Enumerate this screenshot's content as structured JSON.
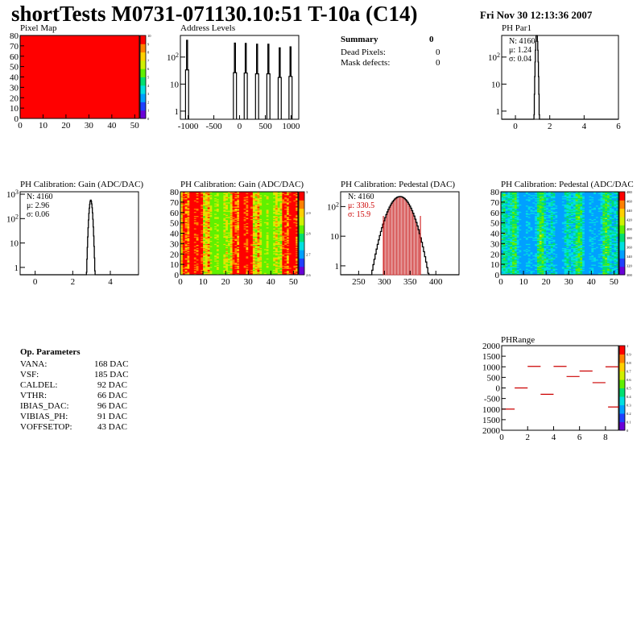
{
  "header": {
    "title": "shortTests M0731-071130.10:51 T-10a (C14)",
    "date": "Fri Nov 30 12:13:36 2007"
  },
  "summary": {
    "title": "Summary",
    "value": "0",
    "rows": [
      {
        "label": "Dead Pixels:",
        "value": "0"
      },
      {
        "label": "Mask defects:",
        "value": "0"
      }
    ]
  },
  "op_parameters": {
    "title": "Op. Parameters",
    "rows": [
      {
        "name": "VANA:",
        "value": "168 DAC"
      },
      {
        "name": "VSF:",
        "value": "185 DAC"
      },
      {
        "name": "CALDEL:",
        "value": "92 DAC"
      },
      {
        "name": "VTHR:",
        "value": "66 DAC"
      },
      {
        "name": "IBIAS_DAC:",
        "value": "96 DAC"
      },
      {
        "name": "VIBIAS_PH:",
        "value": "91 DAC"
      },
      {
        "name": "VOFFSETOP:",
        "value": "43 DAC"
      }
    ]
  },
  "colors": {
    "axis": "#000000",
    "fit": "#cc0000",
    "pixel_map_fill": "#ff0000",
    "palette": [
      "#6a00d8",
      "#2040ff",
      "#00a0ff",
      "#00e0e0",
      "#00e070",
      "#60f000",
      "#d0f000",
      "#ffd000",
      "#ff8000",
      "#ff0000"
    ]
  },
  "chart_data": [
    {
      "id": "pixel-map",
      "type": "heatmap",
      "title": "Pixel Map",
      "xlim": [
        0,
        52
      ],
      "ylim": [
        0,
        80
      ],
      "xticks": [
        "0",
        "10",
        "20",
        "30",
        "40",
        "50"
      ],
      "yticks": [
        "0",
        "10",
        "20",
        "30",
        "40",
        "50",
        "60",
        "70",
        "80"
      ],
      "uniform_value": 10,
      "zticks": [
        "0",
        "1",
        "2",
        "3",
        "4",
        "5",
        "6",
        "7",
        "8",
        "9",
        "10"
      ]
    },
    {
      "id": "address-levels",
      "type": "line",
      "title": "Address Levels",
      "log_y": true,
      "xlim": [
        -1150,
        1150
      ],
      "xticks": [
        "-1000",
        "-500",
        "0",
        "500",
        "1000"
      ],
      "yticks": [
        "1",
        "10",
        "10^2"
      ],
      "peaks": [
        {
          "center": -1020,
          "height": 420
        },
        {
          "center": -90,
          "height": 330
        },
        {
          "center": 120,
          "height": 320
        },
        {
          "center": 340,
          "height": 300
        },
        {
          "center": 560,
          "height": 300
        },
        {
          "center": 780,
          "height": 220
        },
        {
          "center": 990,
          "height": 240
        }
      ]
    },
    {
      "id": "ph-par1",
      "type": "bar",
      "title": "PH Par1",
      "log_y": true,
      "xlim": [
        -0.8,
        6
      ],
      "xticks": [
        "0",
        "2",
        "4",
        "6"
      ],
      "yticks": [
        "1",
        "10",
        "10^2"
      ],
      "stats": {
        "N": "N: 4160",
        "mu": "μ: 1.24",
        "sigma": "σ: 0.04"
      },
      "mean": 1.24,
      "sigma": 0.04,
      "entries": 4160
    },
    {
      "id": "ph-gain",
      "type": "bar",
      "title": "PH Calibration: Gain (ADC/DAC)",
      "log_y": true,
      "xlim": [
        -0.8,
        5.5
      ],
      "xticks": [
        "0",
        "2",
        "4"
      ],
      "yticks": [
        "1",
        "10",
        "10^2",
        "10^3"
      ],
      "stats": {
        "N": "N: 4160",
        "mu": "μ: 2.96",
        "sigma": "σ: 0.06"
      },
      "mean": 2.96,
      "sigma": 0.06,
      "entries": 4160
    },
    {
      "id": "ph-gain-map",
      "type": "heatmap",
      "title": "PH Calibration: Gain (ADC/DAC)",
      "xlim": [
        0,
        52
      ],
      "ylim": [
        0,
        80
      ],
      "xticks": [
        "0",
        "10",
        "20",
        "30",
        "40",
        "50"
      ],
      "yticks": [
        "0",
        "10",
        "20",
        "30",
        "40",
        "50",
        "60",
        "70",
        "80"
      ],
      "zticks": [
        "2.6",
        "2.7",
        "2.8",
        "2.9",
        "3"
      ]
    },
    {
      "id": "ph-pedestal",
      "type": "bar",
      "title": "PH Calibration: Pedestal (DAC)",
      "log_y": true,
      "xlim": [
        215,
        445
      ],
      "xticks": [
        "250",
        "300",
        "350",
        "400"
      ],
      "yticks": [
        "1",
        "10",
        "10^2"
      ],
      "stats": {
        "N": "N: 4160",
        "mu": "μ: 330.5",
        "sigma": "σ: 15.9"
      },
      "mean": 330.5,
      "sigma": 15.9,
      "entries": 4160,
      "cut_lines": [
        298,
        370
      ]
    },
    {
      "id": "ph-pedestal-map",
      "type": "heatmap",
      "title": "PH Calibration: Pedestal (ADC/DAC",
      "xlim": [
        0,
        52
      ],
      "ylim": [
        0,
        80
      ],
      "xticks": [
        "0",
        "10",
        "20",
        "30",
        "40",
        "50"
      ],
      "yticks": [
        "0",
        "10",
        "20",
        "30",
        "40",
        "50",
        "60",
        "70",
        "80"
      ],
      "zticks": [
        "300",
        "320",
        "340",
        "360",
        "380",
        "400",
        "420",
        "440",
        "460",
        "480"
      ]
    },
    {
      "id": "ph-range",
      "type": "scatter",
      "title": "PHRange",
      "xlim": [
        0,
        9
      ],
      "ylim": [
        -2000,
        2000
      ],
      "xticks": [
        "0",
        "2",
        "4",
        "6",
        "8"
      ],
      "yticks": [
        "2000",
        "1500",
        "1000",
        "500",
        "0",
        "-500",
        "1000",
        "1500",
        "2000"
      ],
      "zticks": [
        "0",
        "0.1",
        "0.2",
        "0.3",
        "0.4",
        "0.5",
        "0.6",
        "0.7",
        "0.8",
        "0.9",
        "1"
      ],
      "segments": [
        {
          "x": 0.5,
          "y": -1000
        },
        {
          "x": 1.5,
          "y": 0
        },
        {
          "x": 2.5,
          "y": 1020
        },
        {
          "x": 3.5,
          "y": -300
        },
        {
          "x": 4.5,
          "y": 1020
        },
        {
          "x": 5.5,
          "y": 540
        },
        {
          "x": 6.5,
          "y": 800
        },
        {
          "x": 7.5,
          "y": 250
        },
        {
          "x": 8.5,
          "y": 1000
        },
        {
          "x": 8.7,
          "y": -900
        }
      ]
    }
  ]
}
